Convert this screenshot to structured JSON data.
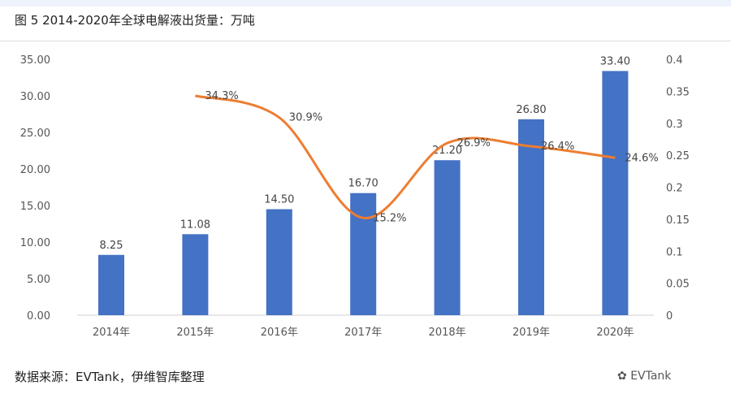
{
  "title": "图 5 2014-2020年全球电解液出货量：万吨",
  "source": "数据来源：EVTank，伊维智库整理",
  "wechat_label": "EVTank",
  "chart_data": {
    "type": "bar+line",
    "categories": [
      "2014年",
      "2015年",
      "2016年",
      "2017年",
      "2018年",
      "2019年",
      "2020年"
    ],
    "series": [
      {
        "type": "bar",
        "axis": "left",
        "values": [
          8.25,
          11.08,
          14.5,
          16.7,
          21.2,
          26.8,
          33.4
        ],
        "labels": [
          "8.25",
          "11.08",
          "14.50",
          "16.70",
          "21.20",
          "26.80",
          "33.40"
        ],
        "color": "#4472c4"
      },
      {
        "type": "line",
        "axis": "right",
        "values": [
          null,
          0.343,
          0.309,
          0.152,
          0.269,
          0.264,
          0.246
        ],
        "labels": [
          "",
          "34.3%",
          "30.9%",
          "15.2%",
          "26.9%",
          "26.4%",
          "24.6%"
        ],
        "color": "#ed7d31"
      }
    ],
    "ylim_left": [
      0,
      35
    ],
    "yticks_left": [
      "0.00",
      "5.00",
      "10.00",
      "15.00",
      "20.00",
      "25.00",
      "30.00",
      "35.00"
    ],
    "ylim_right": [
      0,
      0.4
    ],
    "yticks_right": [
      "0",
      "0.05",
      "0.1",
      "0.15",
      "0.2",
      "0.25",
      "0.3",
      "0.35",
      "0.4"
    ],
    "grid": false,
    "legend": "none"
  }
}
